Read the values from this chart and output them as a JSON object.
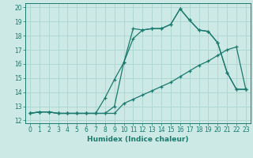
{
  "xlabel": "Humidex (Indice chaleur)",
  "bg_color": "#cce9e5",
  "grid_color": "#b0d8d3",
  "line_color": "#1a7a6e",
  "spine_color": "#1a7a6e",
  "xlim": [
    -0.5,
    23.5
  ],
  "ylim": [
    11.8,
    20.3
  ],
  "xticks": [
    0,
    1,
    2,
    3,
    4,
    5,
    6,
    7,
    8,
    9,
    10,
    11,
    12,
    13,
    14,
    15,
    16,
    17,
    18,
    19,
    20,
    21,
    22,
    23
  ],
  "yticks": [
    12,
    13,
    14,
    15,
    16,
    17,
    18,
    19,
    20
  ],
  "line1_x": [
    0,
    1,
    2,
    3,
    4,
    5,
    6,
    7,
    8,
    9,
    10,
    11,
    12,
    13,
    14,
    15,
    16,
    17,
    18,
    19,
    20,
    21,
    22,
    23
  ],
  "line1_y": [
    12.5,
    12.6,
    12.6,
    12.5,
    12.5,
    12.5,
    12.5,
    12.5,
    12.5,
    13.0,
    16.1,
    18.5,
    18.4,
    18.5,
    18.5,
    18.8,
    19.9,
    19.1,
    18.4,
    18.3,
    17.5,
    15.4,
    14.2,
    14.2
  ],
  "line2_x": [
    0,
    1,
    2,
    3,
    4,
    5,
    6,
    7,
    8,
    9,
    10,
    11,
    12,
    13,
    14,
    15,
    16,
    17,
    18,
    19,
    20,
    21,
    22,
    23
  ],
  "line2_y": [
    12.5,
    12.6,
    12.6,
    12.5,
    12.5,
    12.5,
    12.5,
    12.5,
    13.6,
    14.9,
    16.1,
    17.8,
    18.4,
    18.5,
    18.5,
    18.8,
    19.9,
    19.1,
    18.4,
    18.3,
    17.5,
    15.4,
    14.2,
    14.2
  ],
  "line3_x": [
    0,
    1,
    2,
    3,
    4,
    5,
    6,
    7,
    8,
    9,
    10,
    11,
    12,
    13,
    14,
    15,
    16,
    17,
    18,
    19,
    20,
    21,
    22,
    23
  ],
  "line3_y": [
    12.5,
    12.6,
    12.6,
    12.5,
    12.5,
    12.5,
    12.5,
    12.5,
    12.5,
    12.5,
    13.2,
    13.5,
    13.8,
    14.1,
    14.4,
    14.7,
    15.1,
    15.5,
    15.9,
    16.2,
    16.6,
    17.0,
    17.2,
    14.2
  ],
  "tick_fontsize": 5.5,
  "xlabel_fontsize": 6.5,
  "xlabel_fontweight": "bold"
}
